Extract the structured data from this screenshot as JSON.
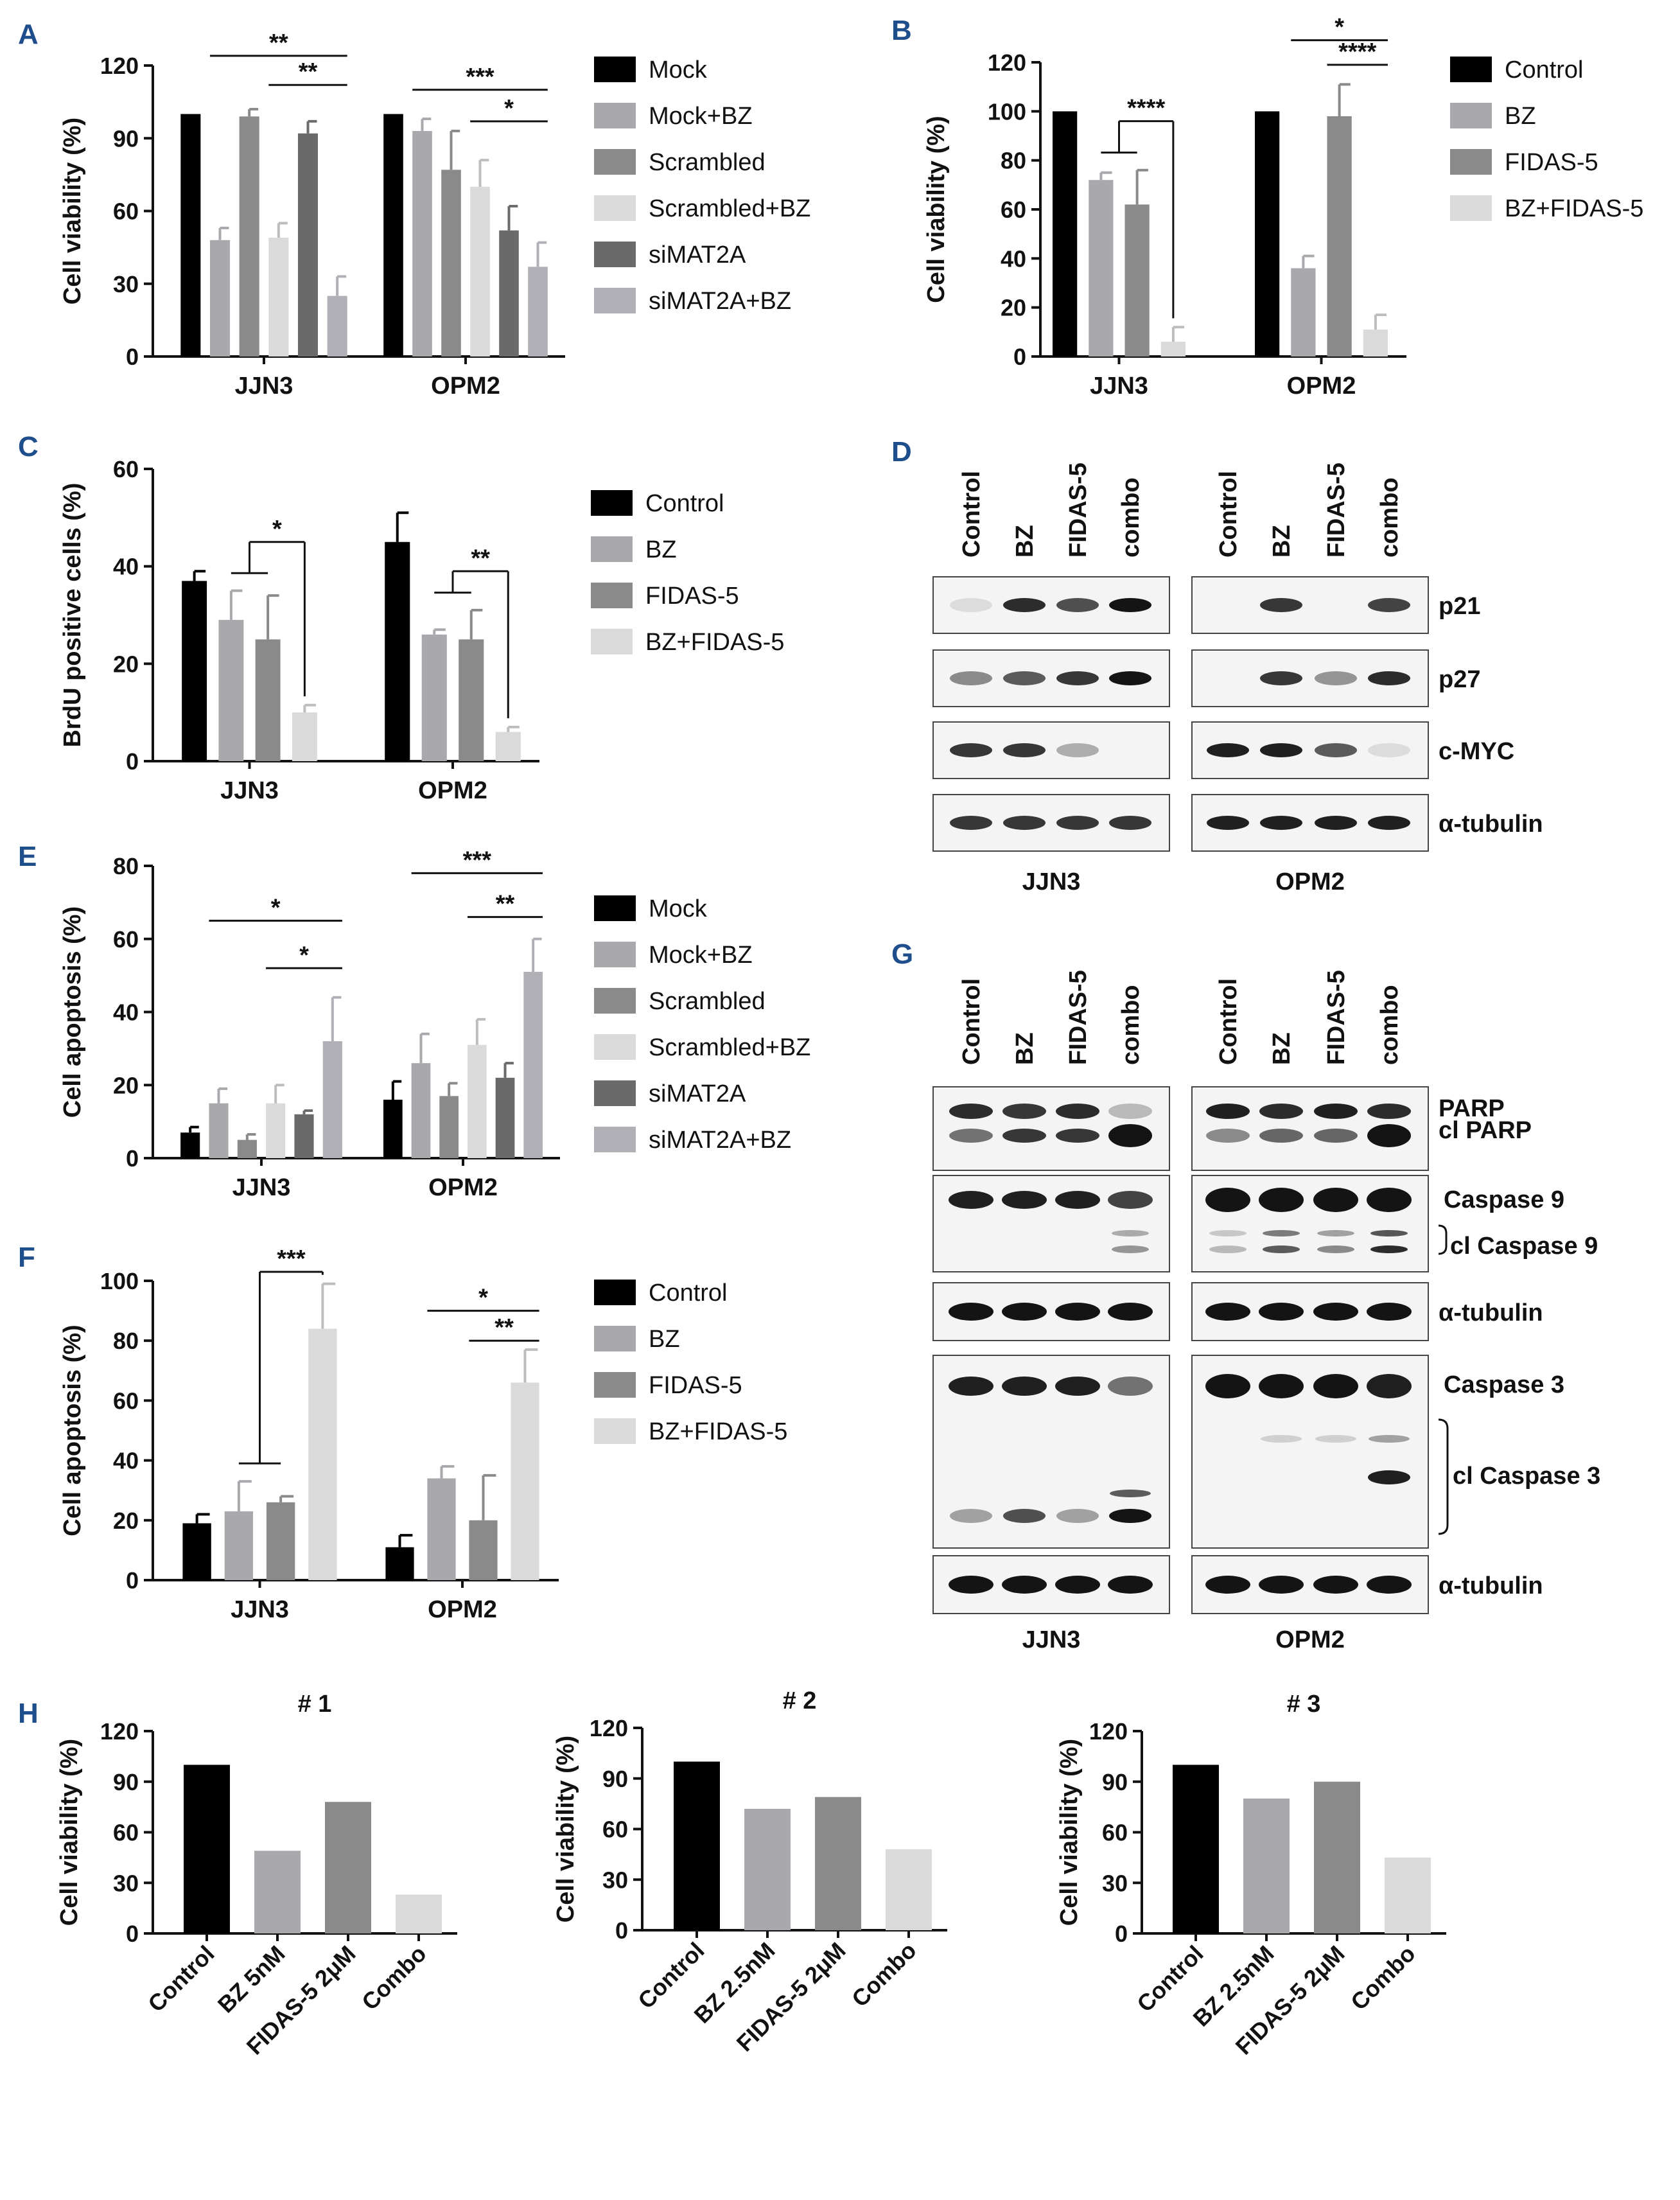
{
  "chart_data": [
    {
      "id": "A",
      "type": "bar",
      "letter": "A",
      "ylabel": "Cell viability (%)",
      "ylim": [
        0,
        120
      ],
      "yticks": [
        0,
        30,
        60,
        90,
        120
      ],
      "groups": [
        "JJN3",
        "OPM2"
      ],
      "series": [
        {
          "name": "Mock",
          "color": "#000000",
          "values": [
            100,
            100
          ],
          "errors": [
            0,
            0
          ]
        },
        {
          "name": "Mock+BZ",
          "color": "#a9a9ad",
          "values": [
            48,
            93
          ],
          "errors": [
            5,
            5
          ]
        },
        {
          "name": "Scrambled",
          "color": "#8a8a8a",
          "values": [
            99,
            77
          ],
          "errors": [
            3,
            16
          ]
        },
        {
          "name": "Scrambled+BZ",
          "color": "#dadada",
          "values": [
            49,
            70
          ],
          "errors": [
            6,
            11
          ]
        },
        {
          "name": "siMAT2A",
          "color": "#6a6a6a",
          "values": [
            92,
            52
          ],
          "errors": [
            5,
            10
          ]
        },
        {
          "name": "siMAT2A+BZ",
          "color": "#b0b0b6",
          "values": [
            25,
            37
          ],
          "errors": [
            8,
            10
          ]
        }
      ],
      "sig": [
        {
          "label": "**",
          "group": 0,
          "from": 1,
          "to": 5,
          "y": 124
        },
        {
          "label": "**",
          "group": 0,
          "from": 3,
          "to": 5,
          "y": 112
        },
        {
          "label": "***",
          "group": 1,
          "from": 1,
          "to": 5,
          "y": 110
        },
        {
          "label": "*",
          "group": 1,
          "from": 3,
          "to": 5,
          "y": 97
        }
      ]
    },
    {
      "id": "B",
      "type": "bar",
      "letter": "B",
      "ylabel": "Cell viability (%)",
      "ylim": [
        0,
        120
      ],
      "yticks": [
        0,
        20,
        40,
        60,
        80,
        100,
        120
      ],
      "groups": [
        "JJN3",
        "OPM2"
      ],
      "series": [
        {
          "name": "Control",
          "color": "#000000",
          "values": [
            100,
            100
          ],
          "errors": [
            0,
            0
          ]
        },
        {
          "name": "BZ",
          "color": "#a9a9ad",
          "values": [
            72,
            36
          ],
          "errors": [
            3,
            5
          ]
        },
        {
          "name": "FIDAS-5",
          "color": "#8a8a8a",
          "values": [
            62,
            98
          ],
          "errors": [
            14,
            13
          ]
        },
        {
          "name": "BZ+FIDAS-5",
          "color": "#dadada",
          "values": [
            6,
            11
          ],
          "errors": [
            6,
            6
          ]
        }
      ],
      "sig": [
        {
          "label": "****",
          "group": 0,
          "bracket": true,
          "y": 96
        },
        {
          "label": "*",
          "group": 1,
          "from": 1,
          "to": 3,
          "y": 129
        },
        {
          "label": "****",
          "group": 1,
          "from": 2,
          "to": 3,
          "y": 119
        }
      ]
    },
    {
      "id": "C",
      "type": "bar",
      "letter": "C",
      "ylabel": "BrdU positive cells (%)",
      "ylim": [
        0,
        60
      ],
      "yticks": [
        0,
        20,
        40,
        60
      ],
      "groups": [
        "JJN3",
        "OPM2"
      ],
      "series": [
        {
          "name": "Control",
          "color": "#000000",
          "values": [
            37,
            45
          ],
          "errors": [
            2,
            6
          ]
        },
        {
          "name": "BZ",
          "color": "#a9a9ad",
          "values": [
            29,
            26
          ],
          "errors": [
            6,
            1
          ]
        },
        {
          "name": "FIDAS-5",
          "color": "#8a8a8a",
          "values": [
            25,
            25
          ],
          "errors": [
            9,
            6
          ]
        },
        {
          "name": "BZ+FIDAS-5",
          "color": "#dadada",
          "values": [
            10,
            6
          ],
          "errors": [
            1.5,
            1
          ]
        }
      ],
      "sig": [
        {
          "label": "*",
          "group": 0,
          "bracket": true,
          "y": 45
        },
        {
          "label": "**",
          "group": 1,
          "bracket": true,
          "y": 39
        }
      ]
    },
    {
      "id": "E",
      "type": "bar",
      "letter": "E",
      "ylabel": "Cell apoptosis (%)",
      "ylim": [
        0,
        80
      ],
      "yticks": [
        0,
        20,
        40,
        60,
        80
      ],
      "groups": [
        "JJN3",
        "OPM2"
      ],
      "series": [
        {
          "name": "Mock",
          "color": "#000000",
          "values": [
            7,
            16
          ],
          "errors": [
            1.5,
            5
          ]
        },
        {
          "name": "Mock+BZ",
          "color": "#a9a9ad",
          "values": [
            15,
            26
          ],
          "errors": [
            4,
            8
          ]
        },
        {
          "name": "Scrambled",
          "color": "#8a8a8a",
          "values": [
            5,
            17
          ],
          "errors": [
            1.5,
            3.5
          ]
        },
        {
          "name": "Scrambled+BZ",
          "color": "#dadada",
          "values": [
            15,
            31
          ],
          "errors": [
            5,
            7
          ]
        },
        {
          "name": "siMAT2A",
          "color": "#6a6a6a",
          "values": [
            12,
            22
          ],
          "errors": [
            1,
            4
          ]
        },
        {
          "name": "siMAT2A+BZ",
          "color": "#b0b0b6",
          "values": [
            32,
            51
          ],
          "errors": [
            12,
            9
          ]
        }
      ],
      "sig": [
        {
          "label": "*",
          "group": 0,
          "from": 1,
          "to": 5,
          "y": 65
        },
        {
          "label": "*",
          "group": 0,
          "from": 3,
          "to": 5,
          "y": 52
        },
        {
          "label": "***",
          "group": 1,
          "from": 1,
          "to": 5,
          "y": 78
        },
        {
          "label": "**",
          "group": 1,
          "from": 3,
          "to": 5,
          "y": 66
        }
      ]
    },
    {
      "id": "F",
      "type": "bar",
      "letter": "F",
      "ylabel": "Cell apoptosis (%)",
      "ylim": [
        0,
        100
      ],
      "yticks": [
        0,
        20,
        40,
        60,
        80,
        100
      ],
      "groups": [
        "JJN3",
        "OPM2"
      ],
      "series": [
        {
          "name": "Control",
          "color": "#000000",
          "values": [
            19,
            11
          ],
          "errors": [
            3,
            4
          ]
        },
        {
          "name": "BZ",
          "color": "#a9a9ad",
          "values": [
            23,
            34
          ],
          "errors": [
            10,
            4
          ]
        },
        {
          "name": "FIDAS-5",
          "color": "#8a8a8a",
          "values": [
            26,
            20
          ],
          "errors": [
            2,
            15
          ]
        },
        {
          "name": "BZ+FIDAS-5",
          "color": "#dadada",
          "values": [
            84,
            66
          ],
          "errors": [
            15,
            11
          ]
        }
      ],
      "sig": [
        {
          "label": "***",
          "group": 0,
          "bracket": true,
          "y": 103
        },
        {
          "label": "*",
          "group": 1,
          "from": 1,
          "to": 3,
          "y": 90
        },
        {
          "label": "**",
          "group": 1,
          "from": 2,
          "to": 3,
          "y": 80
        }
      ]
    },
    {
      "id": "H1",
      "type": "bar",
      "letter": "H",
      "title": "# 1",
      "ylabel": "Cell viability (%)",
      "ylim": [
        0,
        120
      ],
      "yticks": [
        0,
        30,
        60,
        90,
        120
      ],
      "categories": [
        "Control",
        "BZ 5nM",
        "FIDAS-5 2μM",
        "Combo"
      ],
      "values": [
        100,
        49,
        78,
        23
      ],
      "colors": [
        "#000000",
        "#a9a9ad",
        "#8a8a8a",
        "#dadada"
      ]
    },
    {
      "id": "H2",
      "type": "bar",
      "title": "# 2",
      "ylabel": "Cell viability (%)",
      "ylim": [
        0,
        120
      ],
      "yticks": [
        0,
        30,
        60,
        90,
        120
      ],
      "categories": [
        "Control",
        "BZ 2.5nM",
        "FIDAS-5 2μM",
        "Combo"
      ],
      "values": [
        100,
        72,
        79,
        48
      ],
      "colors": [
        "#000000",
        "#a9a9ad",
        "#8a8a8a",
        "#dadada"
      ]
    },
    {
      "id": "H3",
      "type": "bar",
      "title": "# 3",
      "ylabel": "Cell viability (%)",
      "ylim": [
        0,
        120
      ],
      "yticks": [
        0,
        30,
        60,
        90,
        120
      ],
      "categories": [
        "Control",
        "BZ 2.5nM",
        "FIDAS-5 2μM",
        "Combo"
      ],
      "values": [
        100,
        80,
        90,
        45
      ],
      "colors": [
        "#000000",
        "#a9a9ad",
        "#8a8a8a",
        "#dadada"
      ]
    }
  ],
  "blots": {
    "D": {
      "letter": "D",
      "lanes": [
        "Control",
        "BZ",
        "FIDAS-5",
        "combo"
      ],
      "cells": [
        "JJN3",
        "OPM2"
      ],
      "rows": [
        {
          "label": "p21",
          "intensity": [
            [
              0.15,
              0.9,
              0.75,
              1.0
            ],
            [
              0.0,
              0.85,
              0.0,
              0.8
            ]
          ]
        },
        {
          "label": "p27",
          "intensity": [
            [
              0.5,
              0.7,
              0.85,
              1.0
            ],
            [
              0.0,
              0.85,
              0.45,
              0.9
            ]
          ]
        },
        {
          "label": "c-MYC",
          "intensity": [
            [
              0.85,
              0.85,
              0.35,
              0.0
            ],
            [
              0.95,
              0.95,
              0.7,
              0.15
            ]
          ]
        },
        {
          "label": "α-tubulin",
          "intensity": [
            [
              0.85,
              0.85,
              0.85,
              0.85
            ],
            [
              0.95,
              0.95,
              0.95,
              0.95
            ]
          ]
        }
      ]
    },
    "G": {
      "letter": "G",
      "lanes": [
        "Control",
        "BZ",
        "FIDAS-5",
        "combo"
      ],
      "cells": [
        "JJN3",
        "OPM2"
      ],
      "row_labels": {
        "parp": "PARP",
        "cl_parp": "cl PARP",
        "casp9": "Caspase 9",
        "cl_casp9": "cl Caspase 9",
        "tub1": "α-tubulin",
        "casp3": "Caspase 3",
        "cl_casp3": "cl Caspase 3",
        "tub2": "α-tubulin"
      }
    }
  }
}
